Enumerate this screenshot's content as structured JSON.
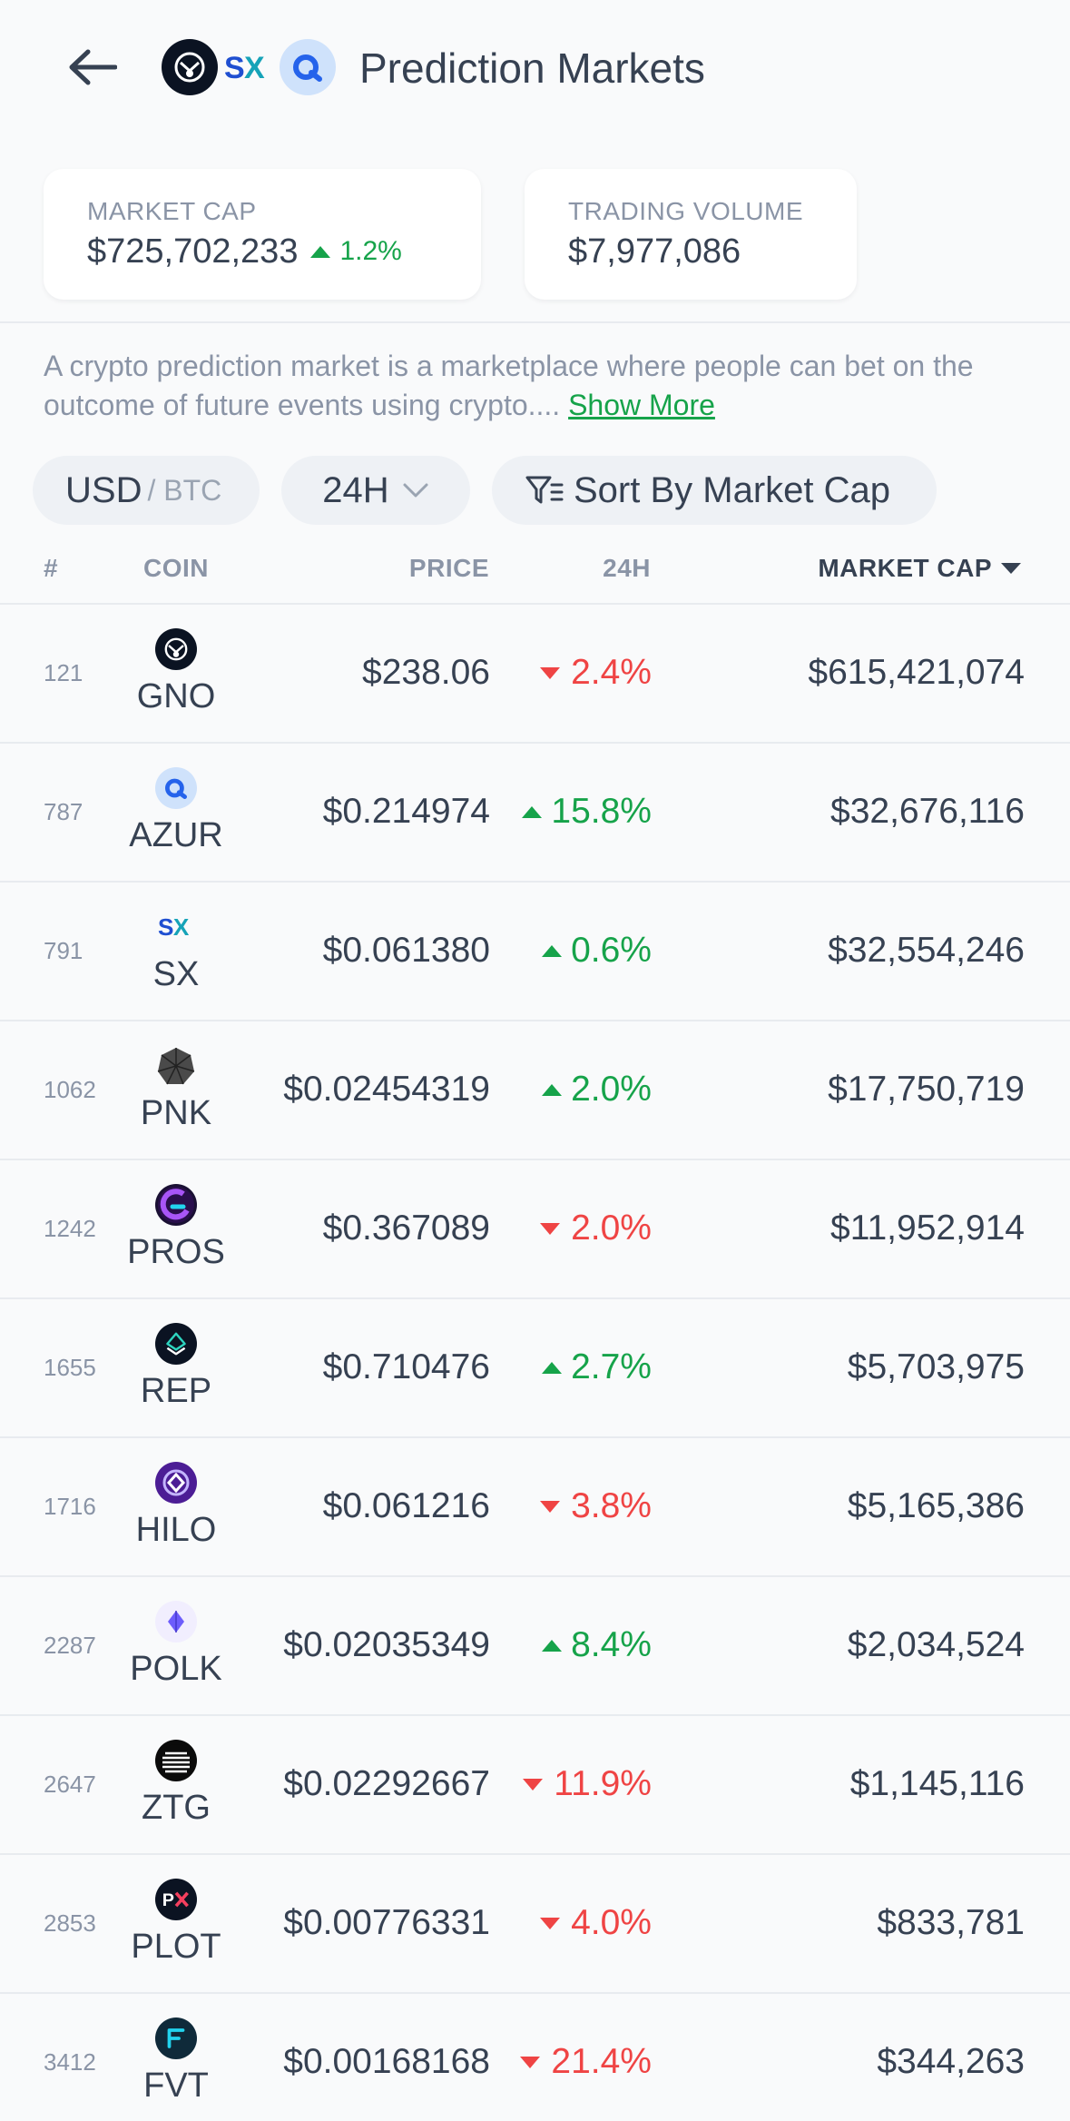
{
  "header": {
    "title": "Prediction Markets",
    "logos": [
      "gno-logo",
      "sx-logo",
      "azur-logo"
    ]
  },
  "stats": {
    "market_cap_label": "MARKET CAP",
    "market_cap_value": "$725,702,233",
    "market_cap_change": "1.2%",
    "trading_volume_label": "TRADING VOLUME",
    "trading_volume_value": "$7,977,086"
  },
  "description": {
    "text": "A crypto prediction market is a marketplace where people can bet on the outcome of future events using crypto.... ",
    "show_more": "Show More"
  },
  "filters": {
    "currency_primary": "USD",
    "currency_secondary": "/ BTC",
    "period": "24H",
    "sort": "Sort By Market Cap"
  },
  "table": {
    "headers": {
      "rank": "#",
      "coin": "COIN",
      "price": "PRICE",
      "change": "24H",
      "market_cap": "MARKET CAP"
    },
    "rows": [
      {
        "rank": "121",
        "symbol": "GNO",
        "price": "$238.06",
        "change": "2.4%",
        "direction": "down",
        "market_cap": "$615,421,074"
      },
      {
        "rank": "787",
        "symbol": "AZUR",
        "price": "$0.214974",
        "change": "15.8%",
        "direction": "up",
        "market_cap": "$32,676,116"
      },
      {
        "rank": "791",
        "symbol": "SX",
        "price": "$0.061380",
        "change": "0.6%",
        "direction": "up",
        "market_cap": "$32,554,246"
      },
      {
        "rank": "1062",
        "symbol": "PNK",
        "price": "$0.02454319",
        "change": "2.0%",
        "direction": "up",
        "market_cap": "$17,750,719"
      },
      {
        "rank": "1242",
        "symbol": "PROS",
        "price": "$0.367089",
        "change": "2.0%",
        "direction": "down",
        "market_cap": "$11,952,914"
      },
      {
        "rank": "1655",
        "symbol": "REP",
        "price": "$0.710476",
        "change": "2.7%",
        "direction": "up",
        "market_cap": "$5,703,975"
      },
      {
        "rank": "1716",
        "symbol": "HILO",
        "price": "$0.061216",
        "change": "3.8%",
        "direction": "down",
        "market_cap": "$5,165,386"
      },
      {
        "rank": "2287",
        "symbol": "POLK",
        "price": "$0.02035349",
        "change": "8.4%",
        "direction": "up",
        "market_cap": "$2,034,524"
      },
      {
        "rank": "2647",
        "symbol": "ZTG",
        "price": "$0.02292667",
        "change": "11.9%",
        "direction": "down",
        "market_cap": "$1,145,116"
      },
      {
        "rank": "2853",
        "symbol": "PLOT",
        "price": "$0.00776331",
        "change": "4.0%",
        "direction": "down",
        "market_cap": "$833,781"
      },
      {
        "rank": "3412",
        "symbol": "FVT",
        "price": "$0.00168168",
        "change": "21.4%",
        "direction": "down",
        "market_cap": "$344,263"
      }
    ]
  },
  "colors": {
    "up": "#16a34a",
    "down": "#ef4444",
    "text": "#364152",
    "muted": "#8a94a6"
  }
}
